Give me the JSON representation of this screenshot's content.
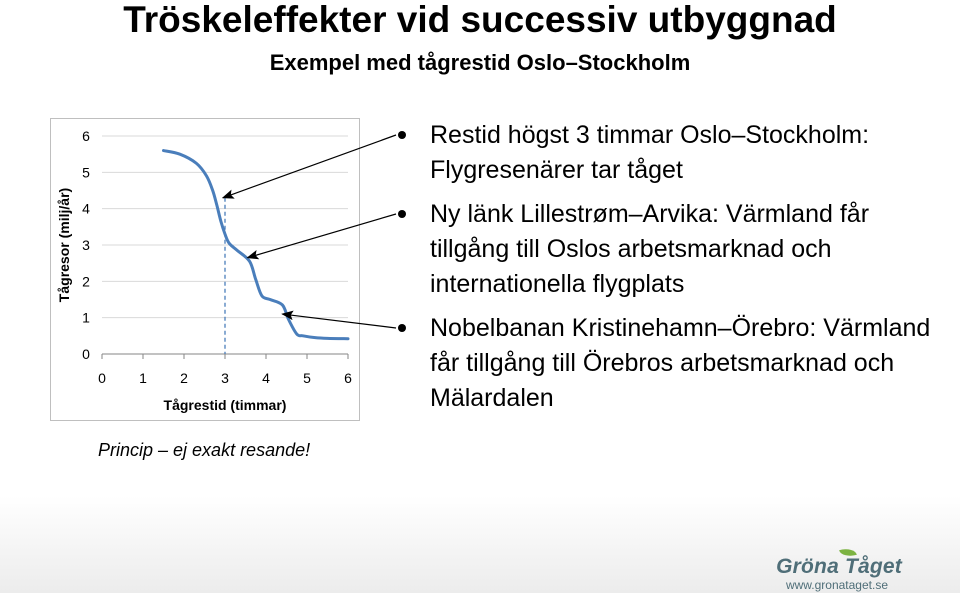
{
  "title": "Tröskeleffekter vid successiv utbyggnad",
  "subtitle": "Exempel med tågrestid Oslo–Stockholm",
  "note": "Princip – ej exakt resande!",
  "bullets": [
    "Restid högst 3 timmar Oslo–Stockholm: Flygresenärer tar tåget",
    "Ny länk Lillestrøm–Arvika: Värmland får tillgång till Oslos arbetsmarknad och internationella flygplats",
    "Nobelbanan Kristinehamn–Örebro: Värmland får tillgång till Örebros arbetsmarknad och Mälardalen"
  ],
  "brand": {
    "name": "Gröna Tåget",
    "url": "www.gronataget.se",
    "color": "#4f6e78"
  },
  "chart_data": {
    "type": "line",
    "xlabel": "Tågrestid (timmar)",
    "ylabel": "Tågresor (milj/år)",
    "xlim": [
      0,
      6
    ],
    "ylim": [
      0,
      6
    ],
    "xticks": [
      "0",
      "1",
      "2",
      "3",
      "4",
      "5",
      "6"
    ],
    "yticks": [
      "0",
      "1",
      "2",
      "3",
      "4",
      "5",
      "6"
    ],
    "grid": "horizontal",
    "line_color": "#4a7ebb",
    "reference_line": {
      "x": 3.0,
      "style": "dashed"
    },
    "series": [
      {
        "x": [
          1.5,
          1.9,
          2.3,
          2.55,
          2.7,
          2.8,
          2.9,
          3.0,
          3.1,
          3.3,
          3.6,
          3.75,
          3.9,
          4.1,
          4.4,
          4.55,
          4.75,
          4.9,
          5.2,
          5.5,
          6.0
        ],
        "y": [
          5.6,
          5.5,
          5.25,
          4.9,
          4.5,
          4.1,
          3.65,
          3.3,
          3.05,
          2.85,
          2.55,
          2.05,
          1.6,
          1.5,
          1.35,
          0.95,
          0.55,
          0.5,
          0.45,
          0.43,
          0.42
        ]
      }
    ],
    "annotations": [
      {
        "target_x": 2.95,
        "target_y": 4.3,
        "from_bullet": 0
      },
      {
        "target_x": 3.55,
        "target_y": 2.65,
        "from_bullet": 1
      },
      {
        "target_x": 4.4,
        "target_y": 1.1,
        "from_bullet": 2
      }
    ]
  }
}
